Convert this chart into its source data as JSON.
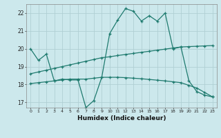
{
  "xlabel": "Humidex (Indice chaleur)",
  "bg_color": "#cce8ec",
  "grid_color": "#b0cfd4",
  "line_color": "#1e7a6e",
  "xlim": [
    -0.5,
    23.5
  ],
  "ylim": [
    16.7,
    22.5
  ],
  "yticks": [
    17,
    18,
    19,
    20,
    21,
    22
  ],
  "xticks": [
    0,
    1,
    2,
    3,
    4,
    5,
    6,
    7,
    8,
    9,
    10,
    11,
    12,
    13,
    14,
    15,
    16,
    17,
    18,
    19,
    20,
    21,
    22,
    23
  ],
  "line1_x": [
    0,
    1,
    2,
    3,
    4,
    5,
    6,
    7,
    8,
    9,
    10,
    11,
    12,
    13,
    14,
    15,
    16,
    17,
    18,
    19,
    20,
    21,
    22,
    23
  ],
  "line1_y": [
    20.0,
    19.35,
    19.7,
    18.2,
    18.3,
    18.25,
    18.25,
    16.7,
    17.1,
    18.4,
    20.85,
    21.6,
    22.25,
    22.1,
    21.55,
    21.85,
    21.55,
    22.0,
    20.0,
    20.1,
    18.2,
    17.6,
    17.4,
    17.3
  ],
  "line2_x": [
    0,
    1,
    2,
    3,
    4,
    5,
    6,
    7,
    8,
    9,
    10,
    11,
    12,
    13,
    14,
    15,
    16,
    17,
    18,
    19,
    20,
    21,
    22,
    23
  ],
  "line2_y": [
    18.6,
    18.7,
    18.8,
    18.9,
    19.0,
    19.1,
    19.2,
    19.3,
    19.4,
    19.5,
    19.55,
    19.62,
    19.68,
    19.74,
    19.8,
    19.86,
    19.92,
    19.98,
    20.04,
    20.1,
    20.12,
    20.14,
    20.16,
    20.18
  ],
  "line3_x": [
    0,
    1,
    2,
    3,
    4,
    5,
    6,
    7,
    8,
    9,
    10,
    11,
    12,
    13,
    14,
    15,
    16,
    17,
    18,
    19,
    20,
    21,
    22,
    23
  ],
  "line3_y": [
    18.05,
    18.1,
    18.15,
    18.2,
    18.25,
    18.3,
    18.3,
    18.3,
    18.35,
    18.4,
    18.4,
    18.4,
    18.38,
    18.35,
    18.32,
    18.28,
    18.24,
    18.2,
    18.15,
    18.1,
    17.95,
    17.8,
    17.55,
    17.3
  ]
}
